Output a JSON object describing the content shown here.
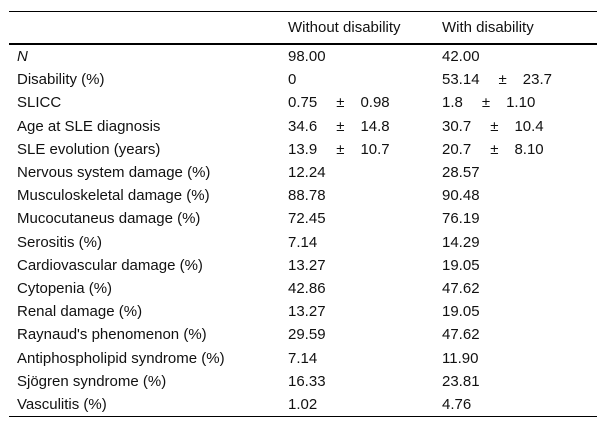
{
  "table": {
    "columns": {
      "label": "",
      "without": "Without disability",
      "with": "With disability"
    },
    "rows": [
      {
        "label": "N",
        "without": {
          "value": "98.00"
        },
        "with": {
          "value": "42.00"
        }
      },
      {
        "label": "Disability (%)",
        "without": {
          "value": "0"
        },
        "with": {
          "value": "53.14",
          "pm": "±",
          "sd": "23.7"
        }
      },
      {
        "label": "SLICC",
        "without": {
          "value": "0.75",
          "pm": "±",
          "sd": "0.98"
        },
        "with": {
          "value": "1.8",
          "pm": "±",
          "sd": "1.10"
        }
      },
      {
        "label": "Age at SLE diagnosis",
        "without": {
          "value": "34.6",
          "pm": "±",
          "sd": "14.8"
        },
        "with": {
          "value": "30.7",
          "pm": "±",
          "sd": "10.4"
        }
      },
      {
        "label": "SLE evolution (years)",
        "without": {
          "value": "13.9",
          "pm": "±",
          "sd": "10.7"
        },
        "with": {
          "value": "20.7",
          "pm": "±",
          "sd": "8.10"
        }
      },
      {
        "label": "Nervous system damage (%)",
        "without": {
          "value": "12.24"
        },
        "with": {
          "value": "28.57"
        }
      },
      {
        "label": "Musculoskeletal damage (%)",
        "without": {
          "value": "88.78"
        },
        "with": {
          "value": "90.48"
        }
      },
      {
        "label": "Mucocutaneus damage (%)",
        "without": {
          "value": "72.45"
        },
        "with": {
          "value": "76.19"
        }
      },
      {
        "label": "Serositis (%)",
        "without": {
          "value": "7.14"
        },
        "with": {
          "value": "14.29"
        }
      },
      {
        "label": "Cardiovascular damage (%)",
        "without": {
          "value": "13.27"
        },
        "with": {
          "value": "19.05"
        }
      },
      {
        "label": "Cytopenia (%)",
        "without": {
          "value": "42.86"
        },
        "with": {
          "value": "47.62"
        }
      },
      {
        "label": "Renal damage (%)",
        "without": {
          "value": "13.27"
        },
        "with": {
          "value": "19.05"
        }
      },
      {
        "label": "Raynaud's phenomenon (%)",
        "without": {
          "value": "29.59"
        },
        "with": {
          "value": "47.62"
        }
      },
      {
        "label": "Antiphospholipid syndrome (%)",
        "without": {
          "value": "7.14"
        },
        "with": {
          "value": "11.90"
        }
      },
      {
        "label": "Sjögren syndrome (%)",
        "without": {
          "value": "16.33"
        },
        "with": {
          "value": "23.81"
        }
      },
      {
        "label": "Vasculitis (%)",
        "without": {
          "value": "1.02"
        },
        "with": {
          "value": "4.76"
        }
      }
    ]
  }
}
